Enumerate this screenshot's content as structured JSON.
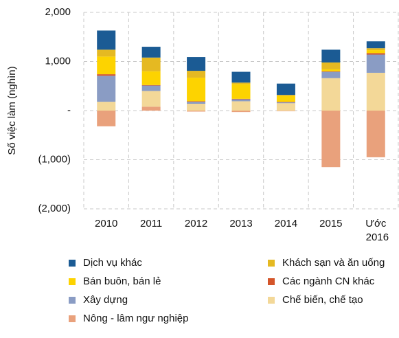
{
  "chart_data": {
    "type": "bar",
    "stacked": true,
    "y_label": "Số việc làm (nghìn)",
    "categories": [
      "2010",
      "2011",
      "2012",
      "2013",
      "2014",
      "2015",
      "Ước 2016"
    ],
    "ylim": [
      -2000,
      2000
    ],
    "yticks": [
      {
        "value": 2000,
        "label": "2,000"
      },
      {
        "value": 1000,
        "label": "1,000"
      },
      {
        "value": 0,
        "label": "-"
      },
      {
        "value": -1000,
        "label": "(1,000)"
      },
      {
        "value": -2000,
        "label": "(2,000)"
      }
    ],
    "grid": true,
    "series": [
      {
        "name": "Dịch vụ khác",
        "color": "#1b5b94",
        "values": [
          390,
          220,
          280,
          220,
          230,
          260,
          140
        ]
      },
      {
        "name": "Khách sạn và ăn uống",
        "color": "#e5b922",
        "values": [
          140,
          280,
          140,
          30,
          20,
          140,
          40
        ]
      },
      {
        "name": "Bán buôn, bán lẻ",
        "color": "#fdd300",
        "values": [
          360,
          280,
          480,
          300,
          120,
          40,
          60
        ]
      },
      {
        "name": "Các ngành CN khác",
        "color": "#d4552a",
        "values": [
          30,
          10,
          10,
          10,
          10,
          10,
          30
        ]
      },
      {
        "name": "Xây dựng",
        "color": "#8a9cc4",
        "values": [
          530,
          110,
          40,
          40,
          20,
          130,
          370
        ]
      },
      {
        "name": "Chế biến, chế tạo",
        "color": "#f3d898",
        "values": [
          180,
          320,
          140,
          190,
          150,
          660,
          770
        ]
      },
      {
        "name": "Nông - lâm ngư nghiệp",
        "color": "#e9a17c",
        "values": [
          -320,
          80,
          -20,
          -30,
          -10,
          -1150,
          -950
        ]
      }
    ]
  }
}
